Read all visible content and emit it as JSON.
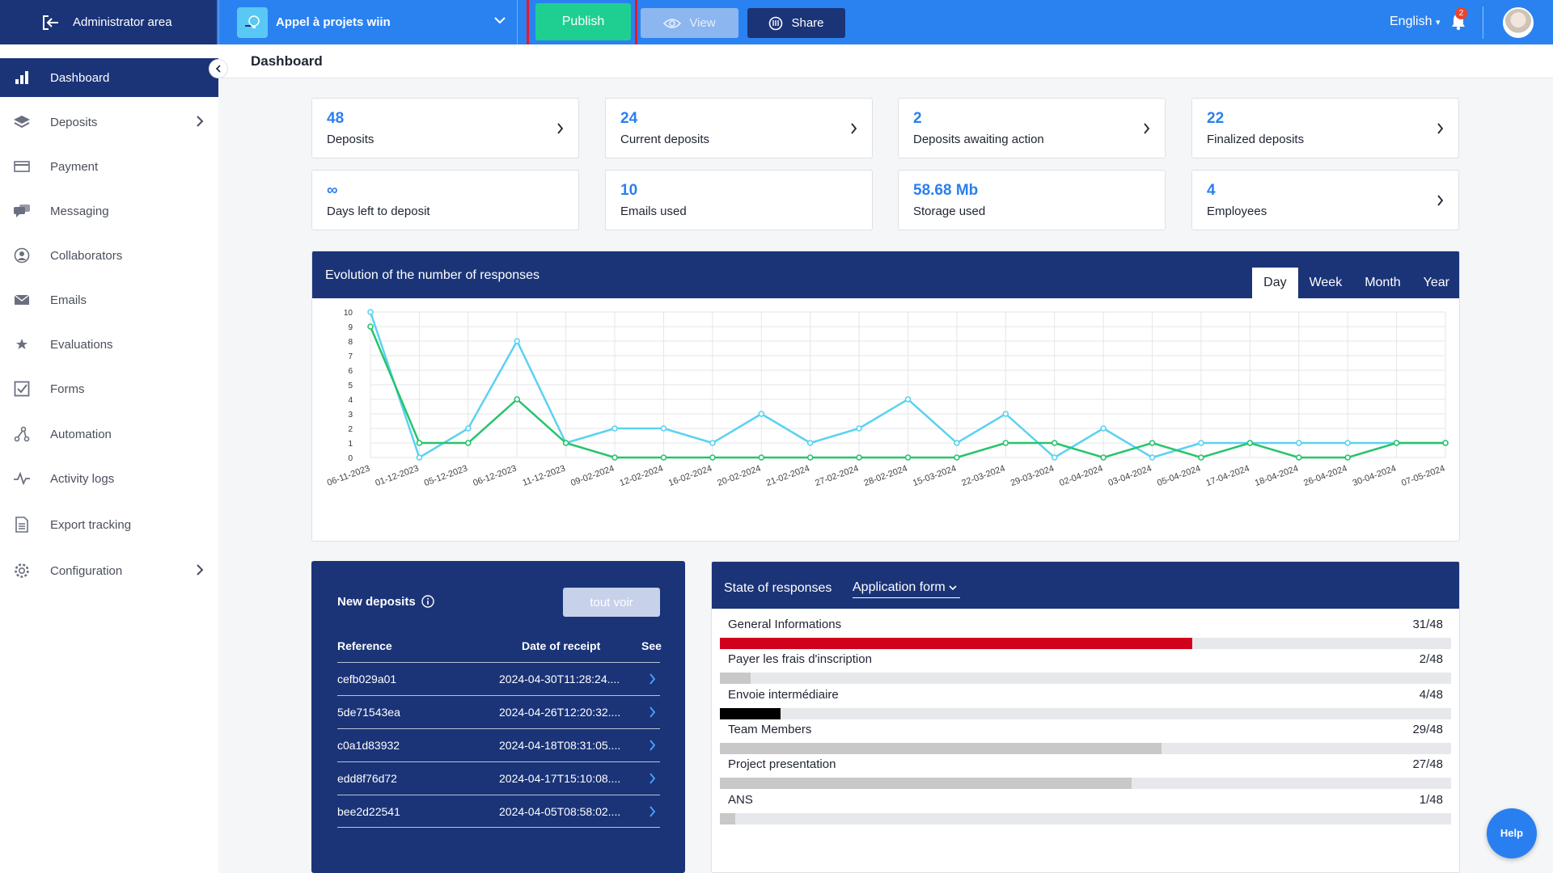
{
  "topbar": {
    "admin_area": "Administrator area",
    "project_name": "Appel à projets wiin",
    "publish": "Publish",
    "view": "View",
    "share": "Share",
    "language": "English",
    "notification_count": "2"
  },
  "sidebar": {
    "items": [
      {
        "label": "Dashboard",
        "icon": "bar-chart-icon",
        "active": true
      },
      {
        "label": "Deposits",
        "icon": "layers-icon",
        "has_submenu": true
      },
      {
        "label": "Payment",
        "icon": "credit-card-icon"
      },
      {
        "label": "Messaging",
        "icon": "chat-icon"
      },
      {
        "label": "Collaborators",
        "icon": "user-circle-icon"
      },
      {
        "label": "Emails",
        "icon": "envelope-icon"
      },
      {
        "label": "Evaluations",
        "icon": "stars-icon"
      },
      {
        "label": "Forms",
        "icon": "checkbox-icon"
      },
      {
        "label": "Automation",
        "icon": "automation-icon"
      },
      {
        "label": "Activity logs",
        "icon": "activity-icon"
      },
      {
        "label": "Export tracking",
        "icon": "document-icon"
      },
      {
        "label": "Configuration",
        "icon": "gear-icon",
        "has_submenu": true
      }
    ]
  },
  "page": {
    "title": "Dashboard"
  },
  "stats": [
    {
      "value": "48",
      "label": "Deposits",
      "link": true
    },
    {
      "value": "24",
      "label": "Current deposits",
      "link": true
    },
    {
      "value": "2",
      "label": "Deposits awaiting action",
      "link": true
    },
    {
      "value": "22",
      "label": "Finalized deposits",
      "link": true
    },
    {
      "value": "∞",
      "label": "Days left to deposit",
      "link": false
    },
    {
      "value": "10",
      "label": "Emails used",
      "link": false
    },
    {
      "value": "58.68 Mb",
      "label": "Storage used",
      "link": false
    },
    {
      "value": "4",
      "label": "Employees",
      "link": true
    }
  ],
  "evolution": {
    "title": "Evolution of the number of responses",
    "tabs": [
      "Day",
      "Week",
      "Month",
      "Year"
    ],
    "active_tab": "Day"
  },
  "chart_data": {
    "type": "line",
    "title": "Evolution of the number of responses",
    "xlabel": "",
    "ylabel": "",
    "ylim": [
      0,
      10
    ],
    "yticks": [
      0,
      1,
      2,
      3,
      4,
      5,
      6,
      7,
      8,
      9,
      10
    ],
    "grid": true,
    "categories": [
      "06-11-2023",
      "01-12-2023",
      "05-12-2023",
      "06-12-2023",
      "11-12-2023",
      "09-02-2024",
      "12-02-2024",
      "16-02-2024",
      "20-02-2024",
      "21-02-2024",
      "27-02-2024",
      "28-02-2024",
      "15-03-2024",
      "22-03-2024",
      "29-03-2024",
      "02-04-2024",
      "03-04-2024",
      "05-04-2024",
      "17-04-2024",
      "18-04-2024",
      "26-04-2024",
      "30-04-2024",
      "07-05-2024"
    ],
    "series": [
      {
        "color": "#5ad2f0",
        "values": [
          10,
          0,
          2,
          8,
          1,
          2,
          2,
          1,
          3,
          1,
          2,
          4,
          1,
          3,
          0,
          2,
          0,
          1,
          1,
          1,
          1,
          1,
          1
        ]
      },
      {
        "color": "#27c46b",
        "values": [
          9,
          1,
          1,
          4,
          1,
          0,
          0,
          0,
          0,
          0,
          0,
          0,
          0,
          1,
          1,
          0,
          1,
          0,
          1,
          0,
          0,
          1,
          1
        ]
      }
    ]
  },
  "new_deposits": {
    "title": "New deposits",
    "see_all": "tout voir",
    "columns": [
      "Reference",
      "Date of receipt",
      "See"
    ],
    "rows": [
      {
        "ref": "cefb029a01",
        "date": "2024-04-30T11:28:24...."
      },
      {
        "ref": "5de71543ea",
        "date": "2024-04-26T12:20:32...."
      },
      {
        "ref": "c0a1d83932",
        "date": "2024-04-18T08:31:05...."
      },
      {
        "ref": "edd8f76d72",
        "date": "2024-04-17T15:10:08...."
      },
      {
        "ref": "bee2d22541",
        "date": "2024-04-05T08:58:02...."
      }
    ]
  },
  "state_of_responses": {
    "title": "State of responses",
    "form_select": "Application form",
    "rows": [
      {
        "label": "General Informations",
        "count": "31/48",
        "fraction": 0.646,
        "color": "#d0021b"
      },
      {
        "label": "Payer les frais d'inscription",
        "count": "2/48",
        "fraction": 0.042,
        "color": "#c8c8c8"
      },
      {
        "label": "Envoie intermédiaire",
        "count": "4/48",
        "fraction": 0.083,
        "color": "#000000"
      },
      {
        "label": "Team Members",
        "count": "29/48",
        "fraction": 0.604,
        "color": "#c8c8c8"
      },
      {
        "label": "Project presentation",
        "count": "27/48",
        "fraction": 0.5625,
        "color": "#c8c8c8"
      },
      {
        "label": "ANS",
        "count": "1/48",
        "fraction": 0.021,
        "color": "#c8c8c8"
      }
    ]
  },
  "help": {
    "label": "Help"
  }
}
